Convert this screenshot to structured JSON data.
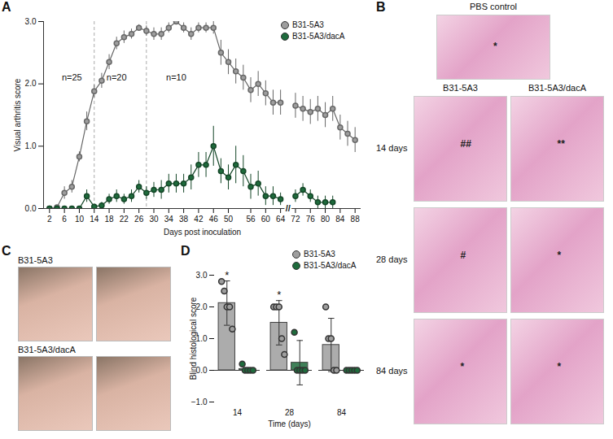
{
  "chart_data": [
    {
      "panel": "A",
      "type": "line",
      "x_label": "Days post inoculation",
      "y_label": "Visual arthritis score",
      "categories": [
        "2",
        null,
        "6",
        null,
        "10",
        null,
        "14",
        null,
        "18",
        null,
        "22",
        null,
        "26",
        null,
        "30",
        null,
        "34",
        null,
        "38",
        null,
        "42",
        null,
        "46",
        null,
        "50",
        null,
        null,
        "56",
        null,
        "60",
        null,
        "64",
        null,
        "72",
        null,
        "76",
        null,
        "80",
        null,
        "84",
        null,
        "88"
      ],
      "ylim": [
        0,
        3
      ],
      "yticks": [
        0,
        1,
        2,
        3
      ],
      "legend": "top-right",
      "series": [
        {
          "name": "B31-5A3",
          "color": "#9e9e9e",
          "marker": "circle",
          "values": [
            0,
            0.02,
            0.25,
            0.35,
            0.83,
            1.4,
            1.88,
            2.05,
            2.35,
            2.65,
            2.75,
            2.8,
            2.9,
            2.85,
            2.8,
            2.8,
            2.9,
            3.0,
            2.9,
            2.8,
            2.9,
            2.9,
            2.9,
            2.5,
            2.35,
            2.2,
            2.1,
            1.9,
            2.0,
            1.85,
            1.7,
            1.7,
            null,
            1.65,
            1.6,
            1.55,
            1.6,
            1.5,
            1.6,
            1.3,
            1.2,
            1.1
          ],
          "errors": [
            0,
            0.02,
            0.1,
            0.1,
            0.08,
            0.15,
            0.1,
            0.12,
            0.12,
            0.1,
            0.1,
            0.08,
            0.05,
            0.08,
            0.1,
            0.1,
            0.08,
            0,
            0.08,
            0.1,
            0.08,
            0.08,
            0.1,
            0.2,
            0.2,
            0.2,
            0.2,
            0.2,
            0.2,
            0.2,
            0.2,
            0.2,
            null,
            0.2,
            0.2,
            0.2,
            0.2,
            0.2,
            0.2,
            0.2,
            0.2,
            0.2
          ]
        },
        {
          "name": "B31-5A3/dacA",
          "color": "#1e6b3c",
          "marker": "circle",
          "values": [
            0,
            0,
            0,
            0,
            0,
            0.2,
            0.03,
            0.05,
            0.15,
            0.2,
            0.15,
            0.2,
            0.35,
            0.25,
            0.3,
            0.3,
            0.4,
            0.4,
            0.4,
            0.5,
            0.7,
            0.7,
            1.0,
            0.6,
            0.5,
            0.7,
            0.6,
            0.35,
            0.4,
            0.2,
            0.2,
            0.15,
            null,
            0.2,
            0.3,
            0.2,
            0.1,
            0.1,
            0.1,
            null,
            null,
            null
          ],
          "errors": [
            0,
            0,
            0,
            0,
            0,
            0.1,
            0.03,
            0.05,
            0.08,
            0.1,
            0.08,
            0.1,
            0.1,
            0.1,
            0.12,
            0.15,
            0.15,
            0.15,
            0.15,
            0.2,
            0.2,
            0.2,
            0.32,
            0.2,
            0.2,
            0.3,
            0.25,
            0.2,
            0.2,
            0.15,
            0.15,
            0.1,
            null,
            0.1,
            0.1,
            0.1,
            0.1,
            0.1,
            0.1,
            null,
            null,
            null
          ]
        }
      ],
      "annotations": [
        {
          "text": "n=25",
          "at": 3,
          "y": 2.1
        },
        {
          "text": "n=20",
          "at": 9,
          "y": 2.1
        },
        {
          "text": "n=10",
          "at": 17,
          "y": 2.1
        }
      ],
      "dividers": [
        6,
        13
      ],
      "axis_break": {
        "text": "//",
        "at": 32
      }
    },
    {
      "panel": "D",
      "type": "bar",
      "x_label": "Time (days)",
      "y_label": "Blind histological score",
      "categories": [
        14,
        28,
        84
      ],
      "ylim": [
        -1,
        3
      ],
      "yticks": [
        -1,
        0,
        1,
        2,
        3
      ],
      "legend": "top-right",
      "series": [
        {
          "name": "B31-5A3",
          "color": "#9e9e9e",
          "values": [
            2.12,
            1.5,
            0.8
          ],
          "errors": [
            0.7,
            0.7,
            0.84
          ],
          "points": [
            [
              2.8,
              2.5,
              2.0,
              2.0,
              1.3
            ],
            [
              2.0,
              2.0,
              2.0,
              1.0,
              0.5
            ],
            [
              2.0,
              1.0,
              1.0,
              0,
              0
            ]
          ],
          "significance": [
            "*",
            "*",
            null
          ]
        },
        {
          "name": "B31-5A3/dacA",
          "color": "#1e6b3c",
          "values": [
            0.04,
            0.24,
            0
          ],
          "errors": [
            0,
            0.7,
            0
          ],
          "points": [
            [
              0.2,
              0,
              0,
              0,
              0
            ],
            [
              1.2,
              0,
              0,
              0,
              0
            ],
            [
              0,
              0,
              0,
              0,
              0
            ]
          ],
          "significance": [
            null,
            null,
            null
          ]
        }
      ]
    }
  ],
  "image_panels": [
    {
      "panel": "B",
      "title": "PBS control",
      "title_mark": "*",
      "columns": [
        "B31-5A3",
        "B31-5A3/dacA"
      ],
      "rows": [
        "14 days",
        "28 days",
        "84 days"
      ],
      "marks": [
        [
          "##",
          "**"
        ],
        [
          "#",
          "*"
        ],
        [
          "*",
          "*"
        ]
      ]
    },
    {
      "panel": "C",
      "rows": [
        "B31-5A3",
        "B31-5A3/dacA"
      ]
    }
  ]
}
